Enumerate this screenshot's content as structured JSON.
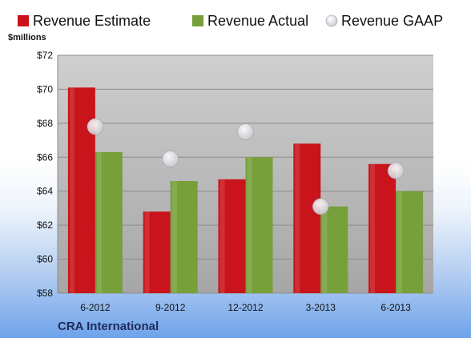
{
  "colors": {
    "estimate": "#c8141a",
    "actual": "#77a03a",
    "gaap": "#c9ccd2",
    "plot_bg_top": "#cfcfcf",
    "plot_bg_bottom": "#a6a6a6",
    "grid": "#8c8c8c"
  },
  "footer": {
    "company": "CRA International"
  },
  "chart_data": {
    "type": "bar",
    "title": "",
    "xlabel": "",
    "ylabel": "$millions",
    "ylim": [
      58,
      72
    ],
    "yticks": [
      58,
      60,
      62,
      64,
      66,
      68,
      70,
      72
    ],
    "ytick_labels": [
      "$58",
      "$60",
      "$62",
      "$64",
      "$66",
      "$68",
      "$70",
      "$72"
    ],
    "grid": true,
    "legend_position": "top",
    "categories": [
      "6-2012",
      "9-2012",
      "12-2012",
      "3-2013",
      "6-2013"
    ],
    "series": [
      {
        "name": "Revenue Estimate",
        "kind": "bar",
        "values": [
          70.1,
          62.8,
          64.7,
          66.8,
          65.6
        ]
      },
      {
        "name": "Revenue Actual",
        "kind": "bar",
        "values": [
          66.3,
          64.6,
          66.0,
          63.1,
          64.0
        ]
      },
      {
        "name": "Revenue GAAP",
        "kind": "marker",
        "values": [
          67.8,
          65.9,
          67.5,
          63.1,
          65.2
        ]
      }
    ]
  }
}
